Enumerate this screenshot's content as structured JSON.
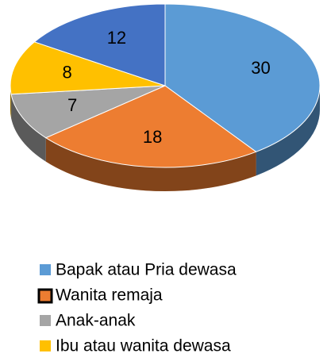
{
  "chart_data": {
    "type": "pie",
    "categories": [
      "Bapak atau Pria dewasa",
      "Wanita remaja",
      "Anak-anak",
      "Ibu atau wanita dewasa",
      null
    ],
    "values": [
      30,
      18,
      7,
      8,
      12
    ],
    "colors": [
      "#5b9bd5",
      "#ed7d31",
      "#a5a5a5",
      "#ffc000",
      "#4472c4"
    ],
    "legend": "bottom"
  }
}
